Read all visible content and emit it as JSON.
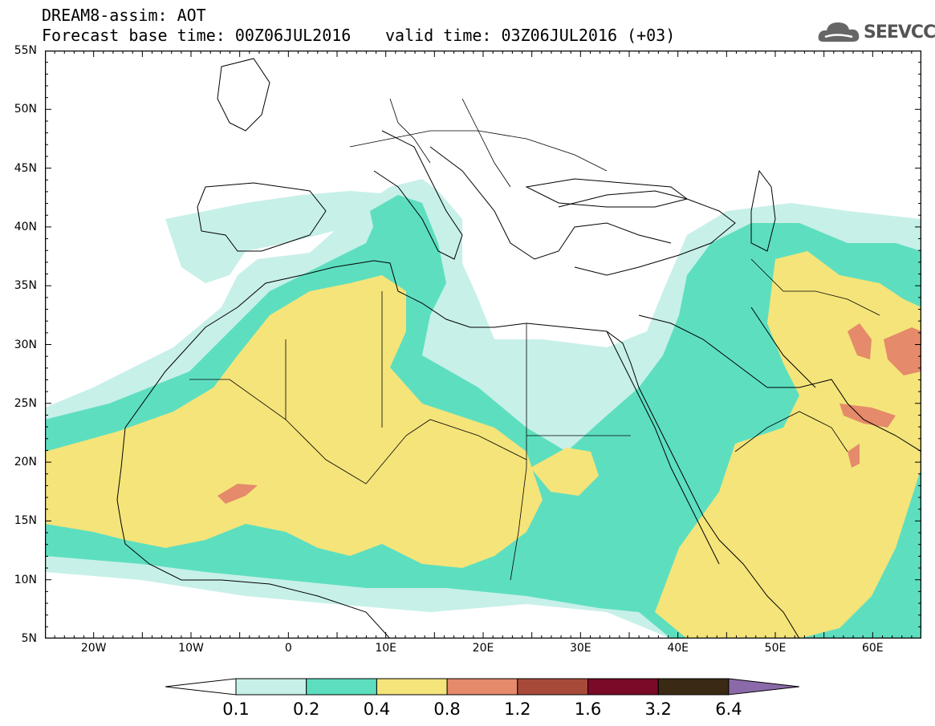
{
  "header": {
    "title": "DREAM8-assim: AOT",
    "base_time": "Forecast base time: 00Z06JUL2016",
    "valid_time": "valid time: 03Z06JUL2016 (+03)"
  },
  "logo": {
    "text": "SEEVCCC",
    "icon": "cloud-logo-icon"
  },
  "map": {
    "extent": {
      "lon_min": -25,
      "lon_max": 65,
      "lat_min": 5,
      "lat_max": 55
    },
    "lat_labels": [
      "55N",
      "50N",
      "45N",
      "40N",
      "35N",
      "30N",
      "25N",
      "20N",
      "15N",
      "10N",
      "5N"
    ],
    "lon_labels": [
      "20W",
      "10W",
      "0",
      "10E",
      "20E",
      "30E",
      "40E",
      "50E",
      "60E"
    ],
    "variable": "AOT",
    "colors": {
      "0.1-0.2": "#c7f0e9",
      "0.2-0.4": "#5ddfbf",
      "0.4-0.8": "#f5e47a",
      "0.8-1.2": "#e58a6a",
      "1.2-1.6": "#a84a3a"
    }
  },
  "legend": {
    "labels": [
      "0.1",
      "0.2",
      "0.4",
      "0.8",
      "1.2",
      "1.6",
      "3.2",
      "6.4"
    ],
    "colors": [
      "#ffffff",
      "#c7f0e9",
      "#5ddfbf",
      "#f5e47a",
      "#e58a6a",
      "#a84a3a",
      "#7a0a28",
      "#3a2a14",
      "#8a6aa8"
    ]
  }
}
